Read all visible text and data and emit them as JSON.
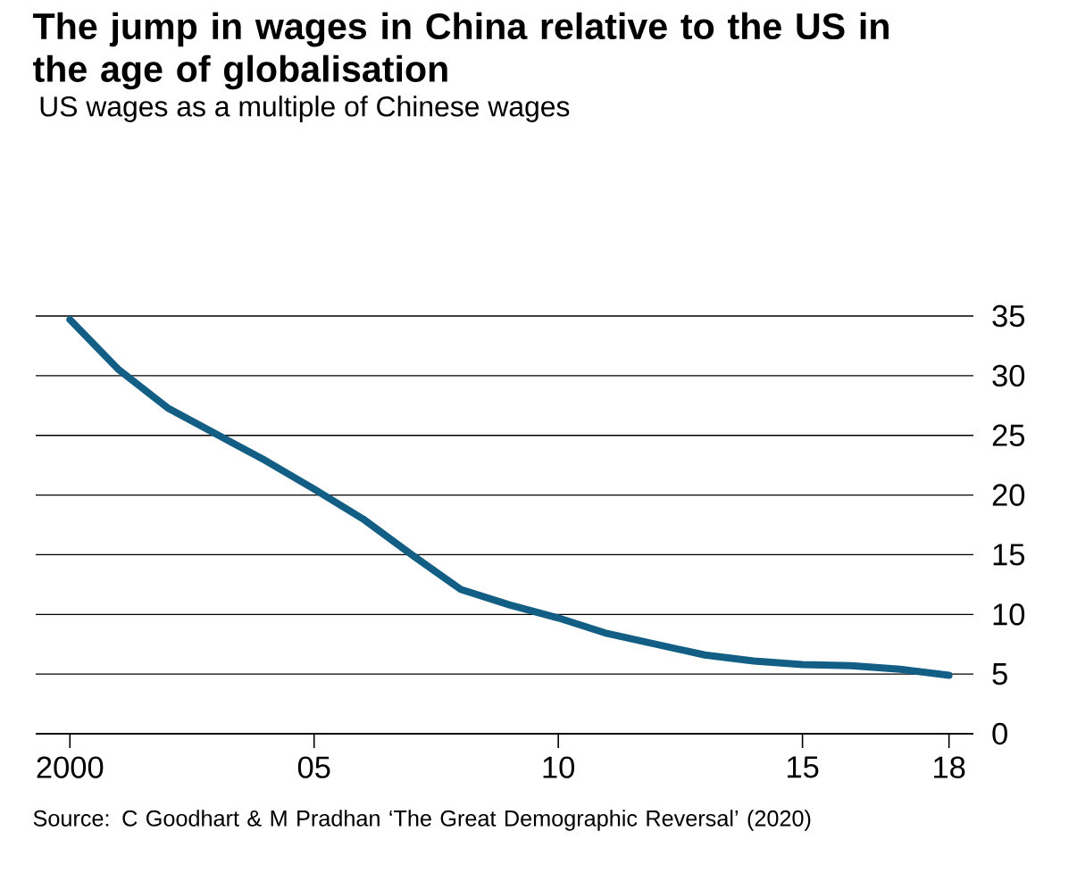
{
  "chart_data": {
    "type": "line",
    "title": "The jump in wages in China relative to the US in the age of globalisation",
    "subtitle": "US wages as a multiple of Chinese wages",
    "annotations": [
      "Source: C Goodhart & M Pradhan ‘The Great Demographic Reversal’ (2020)"
    ],
    "x": [
      2000,
      2001,
      2002,
      2003,
      2004,
      2005,
      2006,
      2007,
      2008,
      2009,
      2010,
      2011,
      2012,
      2013,
      2014,
      2015,
      2016,
      2017,
      2018
    ],
    "values": [
      34.7,
      30.5,
      27.3,
      25.1,
      22.9,
      20.5,
      18,
      15,
      12.1,
      10.8,
      9.7,
      8.4,
      7.5,
      6.6,
      6.1,
      5.8,
      5.7,
      5.4,
      4.9
    ],
    "color": "#135e85",
    "marker": "none",
    "line_style": "solid",
    "grid": "y",
    "xlim": [
      1999.3,
      2018.5
    ],
    "ylim": [
      0,
      35
    ],
    "xticks": [
      {
        "value": 2000,
        "label": "2000"
      },
      {
        "value": 2005,
        "label": "05"
      },
      {
        "value": 2010,
        "label": "10"
      },
      {
        "value": 2015,
        "label": "15"
      },
      {
        "value": 2018,
        "label": "18"
      }
    ],
    "yticks": [
      0,
      5,
      10,
      15,
      20,
      25,
      30,
      35
    ]
  }
}
